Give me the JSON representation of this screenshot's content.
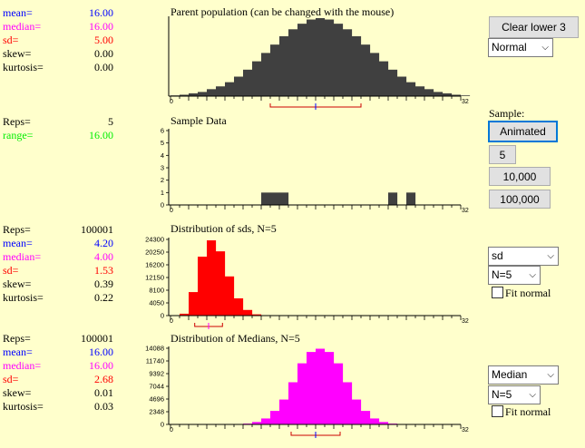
{
  "parent": {
    "title": "Parent population (can be changed with the mouse)",
    "stats": [
      {
        "label": "mean=",
        "value": "16.00",
        "color": "#0000ff"
      },
      {
        "label": "median=",
        "value": "16.00",
        "color": "#ff00ff"
      },
      {
        "label": "sd=",
        "value": "5.00",
        "color": "#ff0000"
      },
      {
        "label": "skew=",
        "value": "0.00",
        "color": "#000000"
      },
      {
        "label": "kurtosis=",
        "value": "0.00",
        "color": "#000000"
      }
    ],
    "axis": {
      "min_label": "0",
      "max_label": "32"
    },
    "distribution_select": "Normal"
  },
  "sample": {
    "title": "Sample Data",
    "stats": [
      {
        "label": "Reps=",
        "value": "5",
        "color": "#000000"
      },
      {
        "label": "range=",
        "value": "16.00",
        "color": "#00ee00"
      }
    ],
    "y_ticks": [
      "0",
      "1",
      "2",
      "3",
      "4",
      "5",
      "6"
    ],
    "axis": {
      "min_label": "0",
      "max_label": "32"
    }
  },
  "controls": {
    "clear_label": "Clear lower 3",
    "sample_label": "Sample:",
    "animated_label": "Animated",
    "btn5_label": "5",
    "btn10000_label": "10,000",
    "btn100000_label": "100,000"
  },
  "sds": {
    "title": "Distribution of sds, N=5",
    "stats": [
      {
        "label": "Reps=",
        "value": "100001",
        "color": "#000000"
      },
      {
        "label": "mean=",
        "value": "4.20",
        "color": "#0000ff"
      },
      {
        "label": "median=",
        "value": "4.00",
        "color": "#ff00ff"
      },
      {
        "label": "sd=",
        "value": "1.53",
        "color": "#ff0000"
      },
      {
        "label": "skew=",
        "value": "0.39",
        "color": "#000000"
      },
      {
        "label": "kurtosis=",
        "value": "0.22",
        "color": "#000000"
      }
    ],
    "y_ticks": [
      "0",
      "4050",
      "8100",
      "12150",
      "16200",
      "20250",
      "24300"
    ],
    "axis": {
      "min_label": "0",
      "max_label": "32"
    },
    "statistic_select": "sd",
    "n_select": "N=5",
    "fit_label": "Fit normal"
  },
  "medians": {
    "title": "Distribution of Medians, N=5",
    "stats": [
      {
        "label": "Reps=",
        "value": "100001",
        "color": "#000000"
      },
      {
        "label": "mean=",
        "value": "16.00",
        "color": "#0000ff"
      },
      {
        "label": "median=",
        "value": "16.00",
        "color": "#ff00ff"
      },
      {
        "label": "sd=",
        "value": "2.68",
        "color": "#ff0000"
      },
      {
        "label": "skew=",
        "value": "0.01",
        "color": "#000000"
      },
      {
        "label": "kurtosis=",
        "value": "0.03",
        "color": "#000000"
      }
    ],
    "y_ticks": [
      "0",
      "2348",
      "4696",
      "7044",
      "9392",
      "11740",
      "14088"
    ],
    "axis": {
      "min_label": "0",
      "max_label": "32"
    },
    "statistic_select": "Median",
    "n_select": "N=5",
    "fit_label": "Fit normal"
  },
  "chart_data": [
    {
      "type": "bar",
      "title": "Parent population (can be changed with the mouse)",
      "x": [
        0,
        1,
        2,
        3,
        4,
        5,
        6,
        7,
        8,
        9,
        10,
        11,
        12,
        13,
        14,
        15,
        16,
        17,
        18,
        19,
        20,
        21,
        22,
        23,
        24,
        25,
        26,
        27,
        28,
        29,
        30,
        31,
        32
      ],
      "values": [
        0.5,
        1,
        2,
        3,
        5,
        7,
        10,
        14,
        19,
        25,
        31,
        37,
        43,
        48,
        52,
        55,
        56,
        55,
        52,
        48,
        43,
        37,
        31,
        25,
        19,
        14,
        10,
        7,
        5,
        3,
        2,
        1,
        0.5
      ],
      "xlim": [
        0,
        32
      ],
      "color": "#404040"
    },
    {
      "type": "bar",
      "title": "Sample Data",
      "x": [
        10,
        11,
        12,
        24,
        26
      ],
      "values": [
        1,
        1,
        1,
        1,
        1
      ],
      "xlim": [
        0,
        32
      ],
      "ylim": [
        0,
        6
      ],
      "color": "#404040"
    },
    {
      "type": "bar",
      "title": "Distribution of sds, N=5",
      "x": [
        1,
        2,
        3,
        4,
        5,
        6,
        7,
        8,
        9,
        10
      ],
      "values": [
        600,
        7500,
        18800,
        24000,
        20500,
        12500,
        5500,
        1800,
        400,
        60
      ],
      "xlim": [
        0,
        32
      ],
      "ylim": [
        0,
        24300
      ],
      "color": "#ff0000"
    },
    {
      "type": "bar",
      "title": "Distribution of Medians, N=5",
      "x": [
        8,
        9,
        10,
        11,
        12,
        13,
        14,
        15,
        16,
        17,
        18,
        19,
        20,
        21,
        22,
        23,
        24
      ],
      "values": [
        150,
        450,
        1100,
        2500,
        4600,
        7800,
        11300,
        13400,
        14000,
        13400,
        11300,
        7800,
        4600,
        2500,
        1100,
        450,
        150
      ],
      "xlim": [
        0,
        32
      ],
      "ylim": [
        0,
        14088
      ],
      "color": "#ff00ff"
    }
  ]
}
